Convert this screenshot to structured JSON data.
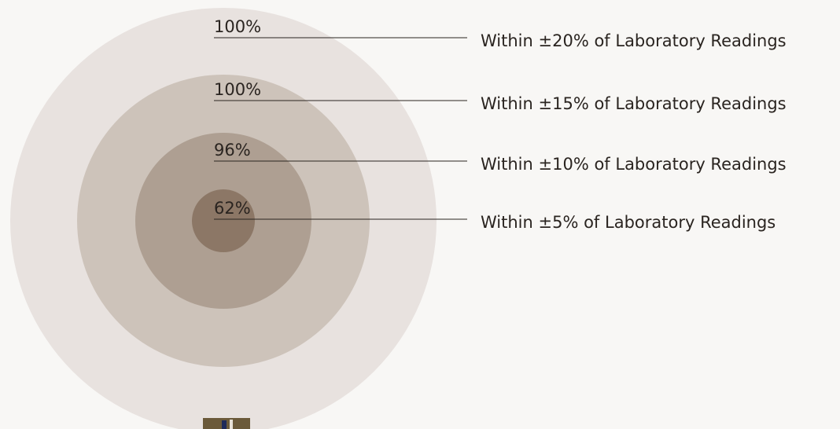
{
  "items": [
    {
      "value": "100%",
      "label": "Within ±20% of Laboratory Readings"
    },
    {
      "value": "100%",
      "label": "Within ±15% of Laboratory Readings"
    },
    {
      "value": "96%",
      "label": "Within ±10% of Laboratory Readings"
    },
    {
      "value": "62%",
      "label": "Within ±5% of Laboratory Readings"
    }
  ]
}
